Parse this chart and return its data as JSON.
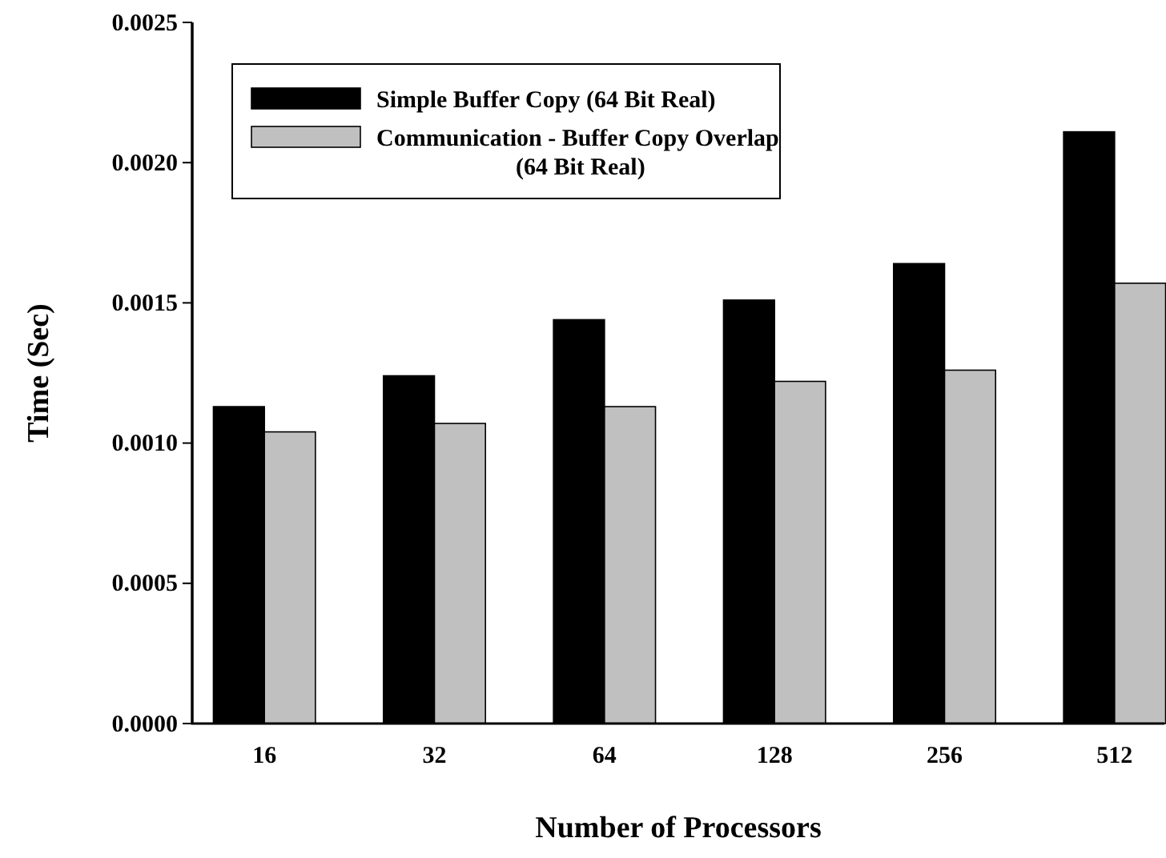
{
  "chart_data": {
    "type": "bar",
    "xlabel": "Number of Processors",
    "ylabel": "Time (Sec)",
    "categories": [
      "16",
      "32",
      "64",
      "128",
      "256",
      "512"
    ],
    "series": [
      {
        "name": "Simple Buffer Copy (64 Bit Real)",
        "color": "#000000",
        "values": [
          0.00113,
          0.00124,
          0.00144,
          0.00151,
          0.00164,
          0.00211
        ]
      },
      {
        "name": "Communication - Buffer Copy Overlap (64 Bit Real)",
        "color": "#c0c0c0",
        "values": [
          0.00104,
          0.00107,
          0.00113,
          0.00122,
          0.00126,
          0.00157
        ]
      }
    ],
    "ylim": [
      0,
      0.0025
    ],
    "yticks": [
      {
        "value": 0,
        "label": "0.0000"
      },
      {
        "value": 0.0005,
        "label": "0.0005"
      },
      {
        "value": 0.001,
        "label": "0.0010"
      },
      {
        "value": 0.0015,
        "label": "0.0015"
      },
      {
        "value": 0.002,
        "label": "0.0020"
      },
      {
        "value": 0.0025,
        "label": "0.0025"
      }
    ],
    "legend": "top left",
    "grid": false
  }
}
